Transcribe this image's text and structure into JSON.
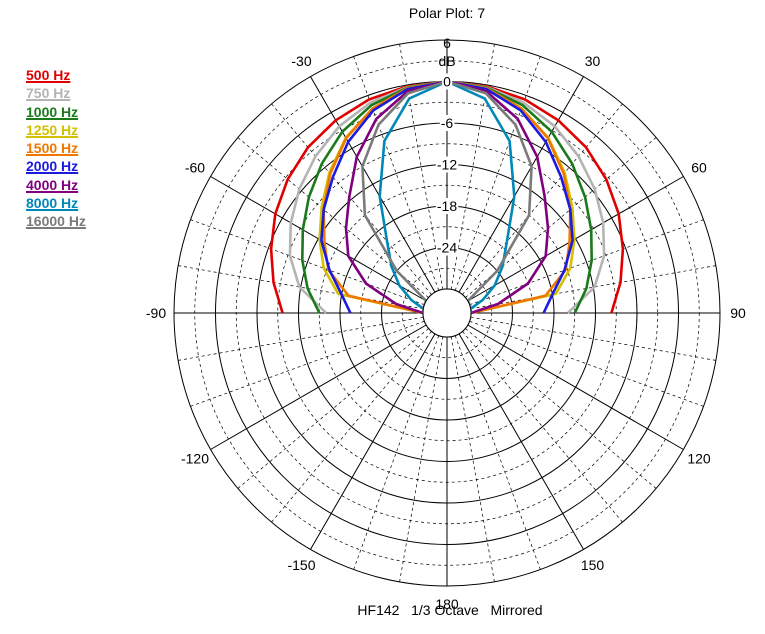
{
  "chart_data": {
    "type": "polar-line",
    "title": "Polar Plot: 7",
    "footer": "HF142   1/3 Octave   Mirrored",
    "radial_unit": "dB",
    "radial_ticks": [
      "6",
      "0",
      "-6",
      "-12",
      "-18",
      "-24"
    ],
    "radial_values": [
      6,
      0,
      -6,
      -12,
      -18,
      -24
    ],
    "radial_range": [
      -30,
      6
    ],
    "angle_labels": [
      {
        "angle": 0,
        "text": ""
      },
      {
        "angle": 30,
        "text": "30"
      },
      {
        "angle": 60,
        "text": "60"
      },
      {
        "angle": 90,
        "text": "90"
      },
      {
        "angle": 120,
        "text": "120"
      },
      {
        "angle": 150,
        "text": "150"
      },
      {
        "angle": 180,
        "text": "180"
      },
      {
        "angle": -150,
        "text": "-150"
      },
      {
        "angle": -120,
        "text": "-120"
      },
      {
        "angle": -90,
        "text": "-90"
      },
      {
        "angle": -60,
        "text": "-60"
      },
      {
        "angle": -30,
        "text": "-30"
      }
    ],
    "mirrored": true,
    "angles_deg": [
      0,
      10,
      20,
      30,
      40,
      50,
      60,
      70,
      80,
      90
    ],
    "series": [
      {
        "name": "500 Hz",
        "color": "#e00000",
        "values": [
          0,
          -0.2,
          -0.6,
          -1.3,
          -2.2,
          -3.4,
          -4.8,
          -6.4,
          -8.0,
          -9.7
        ]
      },
      {
        "name": "750 Hz",
        "color": "#b4b4b4",
        "values": [
          0,
          -0.3,
          -1.1,
          -2.3,
          -3.9,
          -5.6,
          -7.4,
          -9.3,
          -11.8,
          -16.0
        ]
      },
      {
        "name": "1000 Hz",
        "color": "#1a7a1a",
        "values": [
          0,
          -0.4,
          -1.5,
          -3.2,
          -5.3,
          -7.4,
          -9.4,
          -11.2,
          -13.0,
          -15.0
        ]
      },
      {
        "name": "1250 Hz",
        "color": "#d4c000",
        "values": [
          0,
          -0.5,
          -2.0,
          -4.2,
          -7.0,
          -9.8,
          -12.2,
          -14.5,
          -17.5,
          -30.0
        ]
      },
      {
        "name": "1500 Hz",
        "color": "#f07800",
        "values": [
          0,
          -0.5,
          -2.0,
          -4.3,
          -7.2,
          -10.2,
          -13.0,
          -15.2,
          -19.0,
          -30.0
        ]
      },
      {
        "name": "2000 Hz",
        "color": "#1a1ae0",
        "values": [
          0,
          -0.6,
          -2.3,
          -4.9,
          -7.8,
          -10.2,
          -12.5,
          -15.4,
          -18.0,
          -19.5
        ]
      },
      {
        "name": "4000 Hz",
        "color": "#800080",
        "values": [
          0,
          -0.9,
          -3.6,
          -7.4,
          -11.5,
          -14.4,
          -17.0,
          -21.0,
          -26.0,
          -30.0
        ]
      },
      {
        "name": "8000 Hz",
        "color": "#0088b8",
        "values": [
          0,
          -2.0,
          -7.0,
          -14.0,
          -20.0,
          -23.0,
          -25.5,
          -28.0,
          -30.0,
          -30.0
        ]
      },
      {
        "name": "16000 Hz",
        "color": "#7a7a7a",
        "values": [
          0,
          -1.2,
          -4.5,
          -9.0,
          -15.0,
          -24.0,
          -30.0,
          -30.0,
          -30.0,
          -30.0
        ]
      }
    ],
    "grid": true
  }
}
